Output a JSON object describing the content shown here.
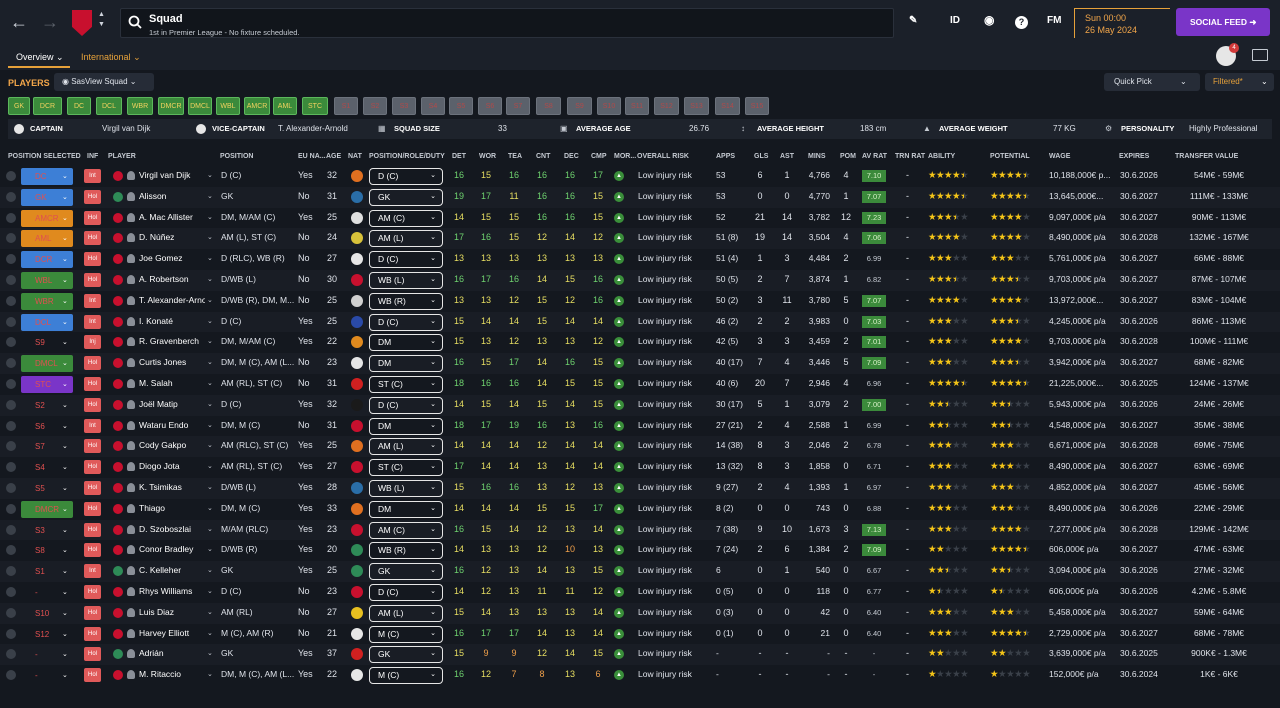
{
  "title": "Squad",
  "subtitle": "1st in Premier League - No fixture scheduled.",
  "top_icons": {
    "id": "ID",
    "fm": "FM"
  },
  "date": {
    "time": "Sun 00:00",
    "day": "26 May 2024"
  },
  "social_feed": "SOCIAL FEED",
  "tabs": {
    "overview": "Overview",
    "international": "International"
  },
  "players_label": "PLAYERS",
  "view_select": "SasView Squad",
  "quick_pick": "Quick Pick",
  "filtered": "Filtered*",
  "notification_count": "4",
  "chips": [
    {
      "label": "GK",
      "on": true
    },
    {
      "label": "DCR",
      "on": true
    },
    {
      "label": "DC",
      "on": true
    },
    {
      "label": "DCL",
      "on": true
    },
    {
      "label": "WBR",
      "on": true
    },
    {
      "label": "DMCR",
      "on": true
    },
    {
      "label": "DMCL",
      "on": true
    },
    {
      "label": "WBL",
      "on": true
    },
    {
      "label": "AMCR",
      "on": true
    },
    {
      "label": "AML",
      "on": true
    },
    {
      "label": "STC",
      "on": true
    },
    {
      "label": "S1",
      "on": false
    },
    {
      "label": "S2",
      "on": false
    },
    {
      "label": "S3",
      "on": false
    },
    {
      "label": "S4",
      "on": false
    },
    {
      "label": "S5",
      "on": false
    },
    {
      "label": "S6",
      "on": false
    },
    {
      "label": "S7",
      "on": false
    },
    {
      "label": "S8",
      "on": false
    },
    {
      "label": "S9",
      "on": false
    },
    {
      "label": "S10",
      "on": false
    },
    {
      "label": "S11",
      "on": false
    },
    {
      "label": "S12",
      "on": false
    },
    {
      "label": "S13",
      "on": false
    },
    {
      "label": "S14",
      "on": false
    },
    {
      "label": "S15",
      "on": false
    }
  ],
  "info": {
    "captain_lbl": "CAPTAIN",
    "captain": "Virgil van Dijk",
    "vice_lbl": "VICE-CAPTAIN",
    "vice": "T. Alexander-Arnold",
    "size_lbl": "SQUAD SIZE",
    "size": "33",
    "age_lbl": "AVERAGE AGE",
    "age": "26.76",
    "height_lbl": "AVERAGE HEIGHT",
    "height": "183 cm",
    "weight_lbl": "AVERAGE WEIGHT",
    "weight": "77 KG",
    "pers_lbl": "PERSONALITY",
    "pers": "Highly Professional"
  },
  "headers": [
    "POSITION SELECTED",
    "INF",
    "PLAYER",
    "POSITION",
    "EU NA...",
    "AGE",
    "NAT",
    "POSITION/ROLE/DUTY",
    "DET",
    "WOR",
    "TEA",
    "CNT",
    "DEC",
    "CMP",
    "MOR...",
    "OVERALL RISK",
    "APPS",
    "GLS",
    "AST",
    "MINS",
    "POM",
    "AV RAT",
    "TRN RAT",
    "ABILITY",
    "POTENTIAL",
    "WAGE",
    "EXPIRES",
    "TRANSFER VALUE"
  ],
  "players": [
    {
      "sel": "DC",
      "inf": "Int",
      "name": "Virgil van Dijk",
      "pos": "D (C)",
      "eu": "Yes",
      "age": "32",
      "role": "D (C)",
      "det": "16",
      "wor": "15",
      "tea": "16",
      "cnt": "16",
      "dec": "16",
      "cmp": "17",
      "risk": "Low injury risk",
      "apps": "53",
      "gls": "6",
      "ast": "1",
      "mins": "4,766",
      "pom": "4",
      "avr": "7.10",
      "trn": "-",
      "abi": 4.5,
      "pot": 4.5,
      "wage": "10,188,000€ p...",
      "exp": "30.6.2026",
      "val": "54M€ - 59M€"
    },
    {
      "sel": "GK",
      "inf": "Hol",
      "name": "Alisson",
      "pos": "GK",
      "eu": "No",
      "age": "31",
      "role": "GK",
      "det": "19",
      "wor": "17",
      "tea": "11",
      "cnt": "16",
      "dec": "16",
      "cmp": "15",
      "risk": "Low injury risk",
      "apps": "53",
      "gls": "0",
      "ast": "0",
      "mins": "4,770",
      "pom": "1",
      "avr": "7.07",
      "trn": "-",
      "abi": 4.5,
      "pot": 4.5,
      "wage": "13,645,000€...",
      "exp": "30.6.2027",
      "val": "111M€ - 133M€"
    },
    {
      "sel": "AMCR",
      "inf": "Hol",
      "name": "A. Mac Allister",
      "pos": "DM, M/AM (C)",
      "eu": "Yes",
      "age": "25",
      "role": "AM (C)",
      "det": "14",
      "wor": "15",
      "tea": "15",
      "cnt": "16",
      "dec": "16",
      "cmp": "15",
      "risk": "Low injury risk",
      "apps": "52",
      "gls": "21",
      "ast": "14",
      "mins": "3,782",
      "pom": "12",
      "avr": "7.23",
      "trn": "-",
      "abi": 3.5,
      "pot": 4,
      "wage": "9,097,000€ p/a",
      "exp": "30.6.2027",
      "val": "90M€ - 113M€"
    },
    {
      "sel": "AML",
      "inf": "Hol",
      "name": "D. Núñez",
      "pos": "AM (L), ST (C)",
      "eu": "No",
      "age": "24",
      "role": "AM (L)",
      "det": "17",
      "wor": "16",
      "tea": "15",
      "cnt": "12",
      "dec": "14",
      "cmp": "12",
      "risk": "Low injury risk",
      "apps": "51 (8)",
      "gls": "19",
      "ast": "14",
      "mins": "3,504",
      "pom": "4",
      "avr": "7.06",
      "trn": "-",
      "abi": 4,
      "pot": 4,
      "wage": "8,490,000€ p/a",
      "exp": "30.6.2028",
      "val": "132M€ - 167M€"
    },
    {
      "sel": "DCR",
      "inf": "Hol",
      "name": "Joe Gomez",
      "pos": "D (RLC), WB (R)",
      "eu": "No",
      "age": "27",
      "role": "D (C)",
      "det": "13",
      "wor": "13",
      "tea": "13",
      "cnt": "13",
      "dec": "13",
      "cmp": "13",
      "risk": "Low injury risk",
      "apps": "51 (4)",
      "gls": "1",
      "ast": "3",
      "mins": "4,484",
      "pom": "2",
      "avr": "6.99",
      "trn": "-",
      "abi": 3,
      "pot": 3,
      "wage": "5,761,000€ p/a",
      "exp": "30.6.2027",
      "val": "66M€ - 88M€"
    },
    {
      "sel": "WBL",
      "inf": "Hol",
      "name": "A. Robertson",
      "pos": "D/WB (L)",
      "eu": "No",
      "age": "30",
      "role": "WB (L)",
      "det": "16",
      "wor": "17",
      "tea": "16",
      "cnt": "14",
      "dec": "15",
      "cmp": "16",
      "risk": "Low injury risk",
      "apps": "50 (5)",
      "gls": "2",
      "ast": "7",
      "mins": "3,874",
      "pom": "1",
      "avr": "6.82",
      "trn": "-",
      "abi": 3.5,
      "pot": 3.5,
      "wage": "9,703,000€ p/a",
      "exp": "30.6.2027",
      "val": "87M€ - 107M€"
    },
    {
      "sel": "WBR",
      "inf": "Int",
      "name": "T. Alexander-Arnold",
      "pos": "D/WB (R), DM, M...",
      "eu": "No",
      "age": "25",
      "role": "WB (R)",
      "det": "13",
      "wor": "13",
      "tea": "12",
      "cnt": "15",
      "dec": "12",
      "cmp": "16",
      "risk": "Low injury risk",
      "apps": "50 (2)",
      "gls": "3",
      "ast": "11",
      "mins": "3,780",
      "pom": "5",
      "avr": "7.07",
      "trn": "-",
      "abi": 4,
      "pot": 4,
      "wage": "13,972,000€...",
      "exp": "30.6.2027",
      "val": "83M€ - 104M€"
    },
    {
      "sel": "DCL",
      "inf": "Int",
      "name": "I. Konaté",
      "pos": "D (C)",
      "eu": "Yes",
      "age": "25",
      "role": "D (C)",
      "det": "15",
      "wor": "14",
      "tea": "14",
      "cnt": "15",
      "dec": "14",
      "cmp": "14",
      "risk": "Low injury risk",
      "apps": "46 (2)",
      "gls": "2",
      "ast": "2",
      "mins": "3,983",
      "pom": "0",
      "avr": "7.03",
      "trn": "-",
      "abi": 3,
      "pot": 3.5,
      "wage": "4,245,000€ p/a",
      "exp": "30.6.2026",
      "val": "86M€ - 113M€"
    },
    {
      "sel": "S9",
      "inf": "Inj",
      "name": "R. Gravenberch",
      "pos": "DM, M/AM (C)",
      "eu": "Yes",
      "age": "22",
      "role": "DM",
      "det": "15",
      "wor": "13",
      "tea": "12",
      "cnt": "13",
      "dec": "13",
      "cmp": "12",
      "risk": "Low injury risk",
      "apps": "42 (5)",
      "gls": "3",
      "ast": "3",
      "mins": "3,459",
      "pom": "2",
      "avr": "7.01",
      "trn": "-",
      "abi": 3,
      "pot": 4,
      "wage": "9,703,000€ p/a",
      "exp": "30.6.2028",
      "val": "100M€ - 111M€"
    },
    {
      "sel": "DMCL",
      "inf": "Hol",
      "name": "Curtis Jones",
      "pos": "DM, M (C), AM (L...",
      "eu": "No",
      "age": "23",
      "role": "DM",
      "det": "16",
      "wor": "15",
      "tea": "17",
      "cnt": "14",
      "dec": "16",
      "cmp": "15",
      "risk": "Low injury risk",
      "apps": "40 (17)",
      "gls": "7",
      "ast": "4",
      "mins": "3,446",
      "pom": "5",
      "avr": "7.09",
      "trn": "-",
      "abi": 3,
      "pot": 3.5,
      "wage": "3,942,000€ p/a",
      "exp": "30.6.2027",
      "val": "68M€ - 82M€"
    },
    {
      "sel": "STC",
      "inf": "Hol",
      "name": "M. Salah",
      "pos": "AM (RL), ST (C)",
      "eu": "No",
      "age": "31",
      "role": "ST (C)",
      "det": "18",
      "wor": "16",
      "tea": "16",
      "cnt": "14",
      "dec": "15",
      "cmp": "15",
      "risk": "Low injury risk",
      "apps": "40 (6)",
      "gls": "20",
      "ast": "7",
      "mins": "2,946",
      "pom": "4",
      "avr": "6.96",
      "trn": "-",
      "abi": 4.5,
      "pot": 4.5,
      "wage": "21,225,000€...",
      "exp": "30.6.2025",
      "val": "124M€ - 137M€"
    },
    {
      "sel": "S2",
      "inf": "Hol",
      "name": "Joël Matip",
      "pos": "D (C)",
      "eu": "Yes",
      "age": "32",
      "role": "D (C)",
      "det": "14",
      "wor": "15",
      "tea": "14",
      "cnt": "15",
      "dec": "14",
      "cmp": "15",
      "risk": "Low injury risk",
      "apps": "30 (17)",
      "gls": "5",
      "ast": "1",
      "mins": "3,079",
      "pom": "2",
      "avr": "7.00",
      "trn": "-",
      "abi": 2.5,
      "pot": 2.5,
      "wage": "5,943,000€ p/a",
      "exp": "30.6.2026",
      "val": "24M€ - 26M€"
    },
    {
      "sel": "S6",
      "inf": "Int",
      "name": "Wataru Endo",
      "pos": "DM, M (C)",
      "eu": "No",
      "age": "31",
      "role": "DM",
      "det": "18",
      "wor": "17",
      "tea": "19",
      "cnt": "16",
      "dec": "13",
      "cmp": "16",
      "risk": "Low injury risk",
      "apps": "27 (21)",
      "gls": "2",
      "ast": "4",
      "mins": "2,588",
      "pom": "1",
      "avr": "6.99",
      "trn": "-",
      "abi": 2.5,
      "pot": 2.5,
      "wage": "4,548,000€ p/a",
      "exp": "30.6.2027",
      "val": "35M€ - 38M€"
    },
    {
      "sel": "S7",
      "inf": "Hol",
      "name": "Cody Gakpo",
      "pos": "AM (RLC), ST (C)",
      "eu": "Yes",
      "age": "25",
      "role": "AM (L)",
      "det": "14",
      "wor": "14",
      "tea": "14",
      "cnt": "12",
      "dec": "14",
      "cmp": "14",
      "risk": "Low injury risk",
      "apps": "14 (38)",
      "gls": "8",
      "ast": "3",
      "mins": "2,046",
      "pom": "2",
      "avr": "6.78",
      "trn": "-",
      "abi": 3,
      "pot": 3,
      "wage": "6,671,000€ p/a",
      "exp": "30.6.2028",
      "val": "69M€ - 75M€"
    },
    {
      "sel": "S4",
      "inf": "Hol",
      "name": "Diogo Jota",
      "pos": "AM (RL), ST (C)",
      "eu": "Yes",
      "age": "27",
      "role": "ST (C)",
      "det": "17",
      "wor": "14",
      "tea": "14",
      "cnt": "13",
      "dec": "14",
      "cmp": "14",
      "risk": "Low injury risk",
      "apps": "13 (32)",
      "gls": "8",
      "ast": "3",
      "mins": "1,858",
      "pom": "0",
      "avr": "6.71",
      "trn": "-",
      "abi": 3,
      "pot": 3,
      "wage": "8,490,000€ p/a",
      "exp": "30.6.2027",
      "val": "63M€ - 69M€"
    },
    {
      "sel": "S5",
      "inf": "Hol",
      "name": "K. Tsimikas",
      "pos": "D/WB (L)",
      "eu": "Yes",
      "age": "28",
      "role": "WB (L)",
      "det": "15",
      "wor": "16",
      "tea": "16",
      "cnt": "13",
      "dec": "12",
      "cmp": "13",
      "risk": "Low injury risk",
      "apps": "9 (27)",
      "gls": "2",
      "ast": "4",
      "mins": "1,393",
      "pom": "1",
      "avr": "6.97",
      "trn": "-",
      "abi": 3,
      "pot": 3,
      "wage": "4,852,000€ p/a",
      "exp": "30.6.2027",
      "val": "45M€ - 56M€"
    },
    {
      "sel": "DMCR",
      "inf": "Hol",
      "name": "Thiago",
      "pos": "DM, M (C)",
      "eu": "Yes",
      "age": "33",
      "role": "DM",
      "det": "14",
      "wor": "14",
      "tea": "14",
      "cnt": "15",
      "dec": "15",
      "cmp": "17",
      "risk": "Low injury risk",
      "apps": "8 (2)",
      "gls": "0",
      "ast": "0",
      "mins": "743",
      "pom": "0",
      "avr": "6.88",
      "trn": "-",
      "abi": 3,
      "pot": 3,
      "wage": "8,490,000€ p/a",
      "exp": "30.6.2026",
      "val": "22M€ - 29M€"
    },
    {
      "sel": "S3",
      "inf": "Hol",
      "name": "D. Szoboszlai",
      "pos": "M/AM (RLC)",
      "eu": "Yes",
      "age": "23",
      "role": "AM (C)",
      "det": "16",
      "wor": "15",
      "tea": "14",
      "cnt": "12",
      "dec": "13",
      "cmp": "14",
      "risk": "Low injury risk",
      "apps": "7 (38)",
      "gls": "9",
      "ast": "10",
      "mins": "1,673",
      "pom": "3",
      "avr": "7.13",
      "trn": "-",
      "abi": 3,
      "pot": 4,
      "wage": "7,277,000€ p/a",
      "exp": "30.6.2028",
      "val": "129M€ - 142M€"
    },
    {
      "sel": "S8",
      "inf": "Hol",
      "name": "Conor Bradley",
      "pos": "D/WB (R)",
      "eu": "Yes",
      "age": "20",
      "role": "WB (R)",
      "det": "14",
      "wor": "13",
      "tea": "13",
      "cnt": "12",
      "dec": "10",
      "cmp": "13",
      "risk": "Low injury risk",
      "apps": "7 (24)",
      "gls": "2",
      "ast": "6",
      "mins": "1,384",
      "pom": "2",
      "avr": "7.09",
      "trn": "-",
      "abi": 2,
      "pot": 4.5,
      "wage": "606,000€ p/a",
      "exp": "30.6.2027",
      "val": "47M€ - 63M€"
    },
    {
      "sel": "S1",
      "inf": "Int",
      "name": "C. Kelleher",
      "pos": "GK",
      "eu": "Yes",
      "age": "25",
      "role": "GK",
      "det": "16",
      "wor": "12",
      "tea": "13",
      "cnt": "14",
      "dec": "13",
      "cmp": "15",
      "risk": "Low injury risk",
      "apps": "6",
      "gls": "0",
      "ast": "1",
      "mins": "540",
      "pom": "0",
      "avr": "6.67",
      "trn": "-",
      "abi": 2.5,
      "pot": 2.5,
      "wage": "3,094,000€ p/a",
      "exp": "30.6.2026",
      "val": "27M€ - 32M€"
    },
    {
      "sel": "-",
      "inf": "Hol",
      "name": "Rhys Williams",
      "pos": "D (C)",
      "eu": "No",
      "age": "23",
      "role": "D (C)",
      "det": "14",
      "wor": "12",
      "tea": "13",
      "cnt": "11",
      "dec": "11",
      "cmp": "12",
      "risk": "Low injury risk",
      "apps": "0 (5)",
      "gls": "0",
      "ast": "0",
      "mins": "118",
      "pom": "0",
      "avr": "6.77",
      "trn": "-",
      "abi": 1.5,
      "pot": 1.5,
      "wage": "606,000€ p/a",
      "exp": "30.6.2026",
      "val": "4.2M€ - 5.8M€"
    },
    {
      "sel": "S10",
      "inf": "Hol",
      "name": "Luis Diaz",
      "pos": "AM (RL)",
      "eu": "No",
      "age": "27",
      "role": "AM (L)",
      "det": "15",
      "wor": "14",
      "tea": "13",
      "cnt": "13",
      "dec": "13",
      "cmp": "14",
      "risk": "Low injury risk",
      "apps": "0 (3)",
      "gls": "0",
      "ast": "0",
      "mins": "42",
      "pom": "0",
      "avr": "6.40",
      "trn": "-",
      "abi": 3,
      "pot": 3,
      "wage": "5,458,000€ p/a",
      "exp": "30.6.2027",
      "val": "59M€ - 64M€"
    },
    {
      "sel": "S12",
      "inf": "Hol",
      "name": "Harvey Elliott",
      "pos": "M (C), AM (R)",
      "eu": "No",
      "age": "21",
      "role": "M (C)",
      "det": "16",
      "wor": "17",
      "tea": "17",
      "cnt": "14",
      "dec": "13",
      "cmp": "14",
      "risk": "Low injury risk",
      "apps": "0 (1)",
      "gls": "0",
      "ast": "0",
      "mins": "21",
      "pom": "0",
      "avr": "6.40",
      "trn": "-",
      "abi": 3,
      "pot": 4.5,
      "wage": "2,729,000€ p/a",
      "exp": "30.6.2027",
      "val": "68M€ - 78M€"
    },
    {
      "sel": "-",
      "inf": "Hol",
      "name": "Adrián",
      "pos": "GK",
      "eu": "Yes",
      "age": "37",
      "role": "GK",
      "det": "15",
      "wor": "9",
      "tea": "9",
      "cnt": "12",
      "dec": "14",
      "cmp": "15",
      "risk": "Low injury risk",
      "apps": "-",
      "gls": "-",
      "ast": "-",
      "mins": "-",
      "pom": "-",
      "avr": "-",
      "trn": "-",
      "abi": 2,
      "pot": 2,
      "wage": "3,639,000€ p/a",
      "exp": "30.6.2025",
      "val": "900K€ - 1.3M€"
    },
    {
      "sel": "-",
      "inf": "Hol",
      "name": "M. Ritaccio",
      "pos": "DM, M (C), AM (L...",
      "eu": "Yes",
      "age": "22",
      "role": "M (C)",
      "det": "16",
      "wor": "12",
      "tea": "7",
      "cnt": "8",
      "dec": "13",
      "cmp": "6",
      "risk": "Low injury risk",
      "apps": "-",
      "gls": "-",
      "ast": "-",
      "mins": "-",
      "pom": "-",
      "avr": "-",
      "trn": "-",
      "abi": 1,
      "pot": 1,
      "wage": "152,000€ p/a",
      "exp": "30.6.2024",
      "val": "1K€ - 6K€"
    }
  ],
  "colors": {
    "accent": "#e6a13a",
    "social": "#7a35c8",
    "good": "#6fd36f",
    "mid": "#e8df62"
  }
}
